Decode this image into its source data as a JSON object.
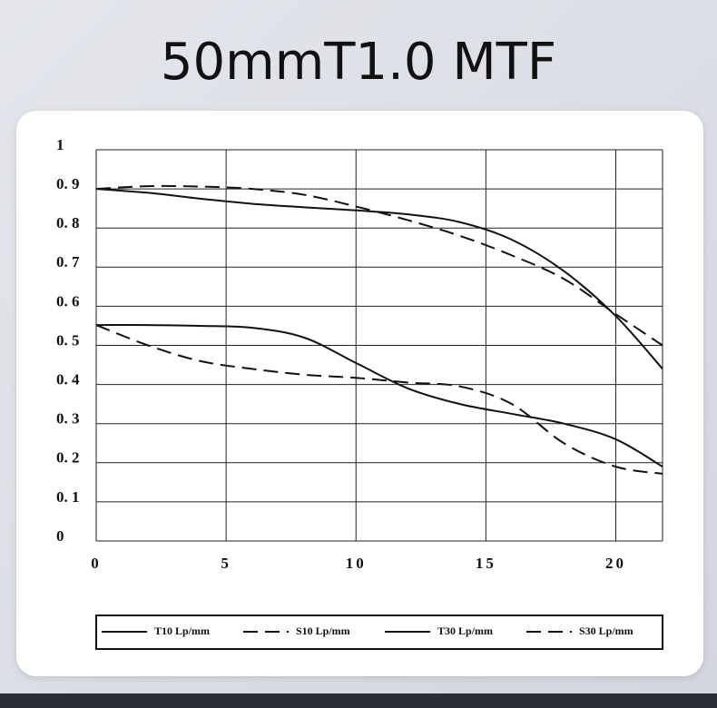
{
  "chart_data": {
    "type": "line",
    "title": "50mmT1.0 MTF",
    "x": [
      0,
      2,
      4,
      6,
      8,
      10,
      12,
      14,
      16,
      18,
      20,
      21.8
    ],
    "series": [
      {
        "name": "T10 Lp/mm",
        "color": "#111111",
        "style": "solid",
        "values": [
          0.9,
          0.89,
          0.875,
          0.862,
          0.853,
          0.845,
          0.835,
          0.815,
          0.77,
          0.69,
          0.575,
          0.44
        ]
      },
      {
        "name": "S10 Lp/mm",
        "color": "#111111",
        "style": "dashed",
        "values": [
          0.9,
          0.907,
          0.906,
          0.9,
          0.885,
          0.855,
          0.82,
          0.78,
          0.73,
          0.67,
          0.58,
          0.5
        ]
      },
      {
        "name": "T30 Lp/mm",
        "color": "#111111",
        "style": "solid",
        "values": [
          0.552,
          0.552,
          0.55,
          0.545,
          0.52,
          0.455,
          0.39,
          0.35,
          0.325,
          0.3,
          0.26,
          0.19
        ]
      },
      {
        "name": "S30 Lp/mm",
        "color": "#111111",
        "style": "dashed",
        "values": [
          0.552,
          0.5,
          0.46,
          0.44,
          0.425,
          0.417,
          0.405,
          0.395,
          0.35,
          0.25,
          0.19,
          0.172
        ]
      }
    ],
    "xlim": [
      0,
      21.8
    ],
    "xticks": [
      0,
      5,
      10,
      15,
      20
    ],
    "ylim": [
      0,
      1
    ],
    "yticks": [
      0,
      {
        "value": 0.1,
        "label": "0. 1"
      },
      {
        "value": 0.2,
        "label": "0. 2"
      },
      {
        "value": 0.3,
        "label": "0. 3"
      },
      {
        "value": 0.4,
        "label": "0. 4"
      },
      {
        "value": 0.5,
        "label": "0. 5"
      },
      {
        "value": 0.6,
        "label": "0. 6"
      },
      {
        "value": 0.7,
        "label": "0. 7"
      },
      {
        "value": 0.8,
        "label": "0. 8"
      },
      {
        "value": 0.9,
        "label": "0. 9"
      },
      1
    ],
    "grid": true,
    "legend": "bottom"
  }
}
